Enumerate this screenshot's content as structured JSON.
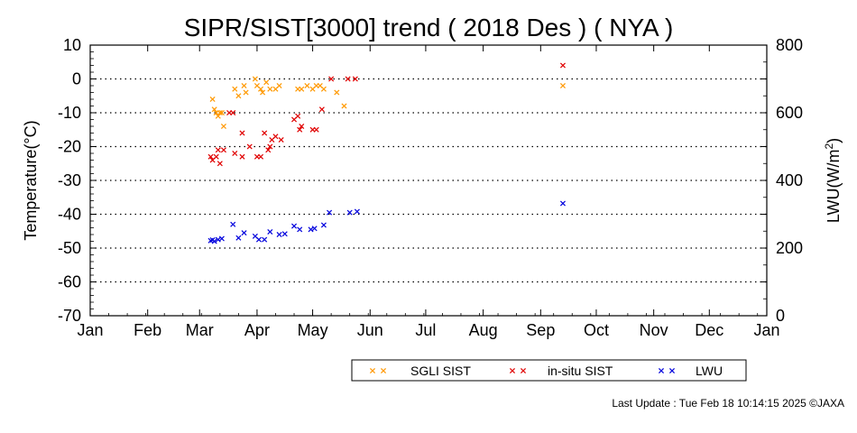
{
  "chart_data": {
    "type": "scatter",
    "title": "SIPR/SIST[3000] trend ( 2018 Des ) ( NYA )",
    "ylabel": "Temperature(°C)",
    "y2label_main": "LWU(W/m",
    "y2label_sup": "2",
    "y2label_end": ")",
    "ylim": [
      -70,
      10
    ],
    "y2lim": [
      0,
      800
    ],
    "yticks": [
      "10",
      "0",
      "-10",
      "-20",
      "-30",
      "-40",
      "-50",
      "-60",
      "-70"
    ],
    "y2ticks": [
      "800",
      "600",
      "400",
      "200",
      "0"
    ],
    "x_unit": "day of year",
    "xlim": [
      1,
      366
    ],
    "xticks": [
      "Jan",
      "Feb",
      "Mar",
      "Apr",
      "May",
      "Jun",
      "Jul",
      "Aug",
      "Sep",
      "Oct",
      "Nov",
      "Dec",
      "Jan"
    ],
    "grid": "horizontal dotted",
    "legend_position": "bottom-right",
    "series": [
      {
        "name": "SGLI SIST",
        "color": "#ff9900",
        "axis": "left",
        "points": [
          [
            67,
            -6
          ],
          [
            68,
            -9
          ],
          [
            69,
            -10
          ],
          [
            70,
            -11
          ],
          [
            71,
            -10
          ],
          [
            72,
            -10
          ],
          [
            73,
            -14
          ],
          [
            79,
            -3
          ],
          [
            81,
            -5
          ],
          [
            84,
            -2
          ],
          [
            85,
            -4
          ],
          [
            90,
            0
          ],
          [
            91,
            -2
          ],
          [
            93,
            -3
          ],
          [
            94,
            -4
          ],
          [
            96,
            -1
          ],
          [
            98,
            -3
          ],
          [
            101,
            -3
          ],
          [
            103,
            -2
          ],
          [
            113,
            -3
          ],
          [
            115,
            -3
          ],
          [
            118,
            -2
          ],
          [
            121,
            -3
          ],
          [
            123,
            -2
          ],
          [
            125,
            -2
          ],
          [
            127,
            -3
          ],
          [
            134,
            -4
          ],
          [
            138,
            -8
          ],
          [
            256,
            -2
          ]
        ]
      },
      {
        "name": "in-situ SIST",
        "color": "#e00000",
        "axis": "left",
        "points": [
          [
            66,
            -23
          ],
          [
            67,
            -24
          ],
          [
            69,
            -23
          ],
          [
            70,
            -21
          ],
          [
            71,
            -25
          ],
          [
            73,
            -21
          ],
          [
            76,
            -10
          ],
          [
            78,
            -10
          ],
          [
            79,
            -22
          ],
          [
            83,
            -16
          ],
          [
            83,
            -23
          ],
          [
            87,
            -20
          ],
          [
            91,
            -23
          ],
          [
            93,
            -23
          ],
          [
            95,
            -16
          ],
          [
            97,
            -21
          ],
          [
            98,
            -20
          ],
          [
            99,
            -18
          ],
          [
            101,
            -17
          ],
          [
            104,
            -18
          ],
          [
            111,
            -12
          ],
          [
            113,
            -11
          ],
          [
            114,
            -15
          ],
          [
            115,
            -14
          ],
          [
            121,
            -15
          ],
          [
            123,
            -15
          ],
          [
            126,
            -9
          ],
          [
            131,
            0
          ],
          [
            140,
            0
          ],
          [
            144,
            0
          ],
          [
            256,
            4
          ]
        ]
      },
      {
        "name": "LWU",
        "color": "#0000dd",
        "axis": "right",
        "points": [
          [
            66,
            222
          ],
          [
            67,
            224
          ],
          [
            68,
            220
          ],
          [
            70,
            225
          ],
          [
            72,
            228
          ],
          [
            78,
            270
          ],
          [
            81,
            230
          ],
          [
            84,
            245
          ],
          [
            90,
            235
          ],
          [
            92,
            225
          ],
          [
            95,
            225
          ],
          [
            98,
            248
          ],
          [
            103,
            240
          ],
          [
            106,
            242
          ],
          [
            111,
            265
          ],
          [
            114,
            255
          ],
          [
            120,
            255
          ],
          [
            122,
            258
          ],
          [
            127,
            268
          ],
          [
            130,
            305
          ],
          [
            141,
            305
          ],
          [
            145,
            308
          ],
          [
            256,
            332
          ]
        ]
      }
    ]
  },
  "legend": {
    "items": [
      {
        "label": "SGLI SIST",
        "color": "#ff9900"
      },
      {
        "label": "in-situ SIST",
        "color": "#e00000"
      },
      {
        "label": "LWU",
        "color": "#0000dd"
      }
    ]
  },
  "footer": {
    "last_update": "Last Update : Tue Feb 18 10:14:15 2025  ©JAXA"
  }
}
